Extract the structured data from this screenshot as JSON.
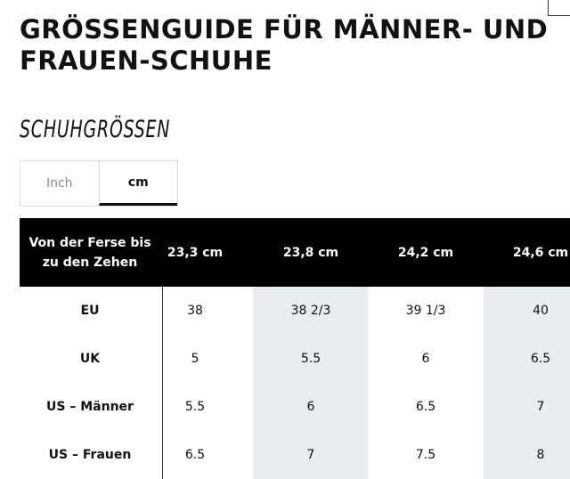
{
  "header": {
    "title_lines": [
      "GRÖSSENGUIDE FÜR MÄNNER- UND",
      "FRAUEN-SCHUHE"
    ]
  },
  "section": {
    "title": "SCHUHGRÖSSEN"
  },
  "tabs": {
    "items": [
      "Inch",
      "cm"
    ],
    "active": 1
  },
  "table": {
    "header": [
      "Von der Ferse bis zu den Zehen",
      "23,3 cm",
      "23,8 cm",
      "24,2 cm",
      "24,6 cm"
    ],
    "rows": [
      [
        "EU",
        "38",
        "38 2/3",
        "39 1/3",
        "40"
      ],
      [
        "UK",
        "5",
        "5.5",
        "6",
        "6.5"
      ],
      [
        "US – Männer",
        "5.5",
        "6",
        "6.5",
        "7"
      ],
      [
        "US – Frauen",
        "6.5",
        "7",
        "7.5",
        "8"
      ]
    ]
  }
}
